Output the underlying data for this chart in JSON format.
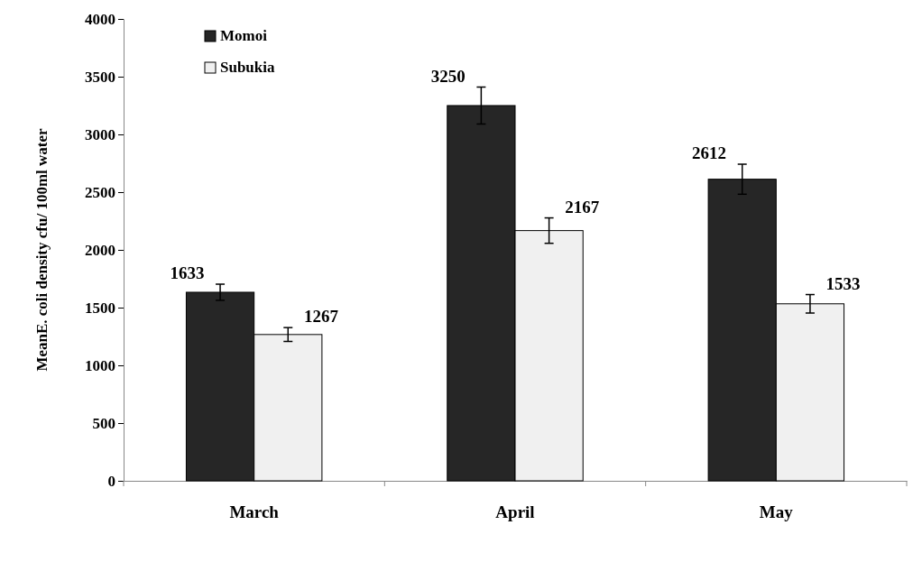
{
  "chart_data": {
    "type": "bar",
    "ylabel": "MeanE. coli density cfu/ 100ml water",
    "categories": [
      "March",
      "April",
      "May"
    ],
    "series": [
      {
        "name": "Momoi",
        "color": "#262626",
        "values": [
          1633,
          3250,
          2612
        ],
        "errors": [
          70,
          160,
          130
        ]
      },
      {
        "name": "Subukia",
        "color": "#f0f0f0",
        "values": [
          1267,
          2167,
          1533
        ],
        "errors": [
          60,
          110,
          80
        ]
      }
    ],
    "ylim": [
      0,
      4000
    ],
    "yticks": [
      0,
      500,
      1000,
      1500,
      2000,
      2500,
      3000,
      3500,
      4000
    ],
    "grid": false,
    "legend": "top left",
    "data_labels": true
  }
}
